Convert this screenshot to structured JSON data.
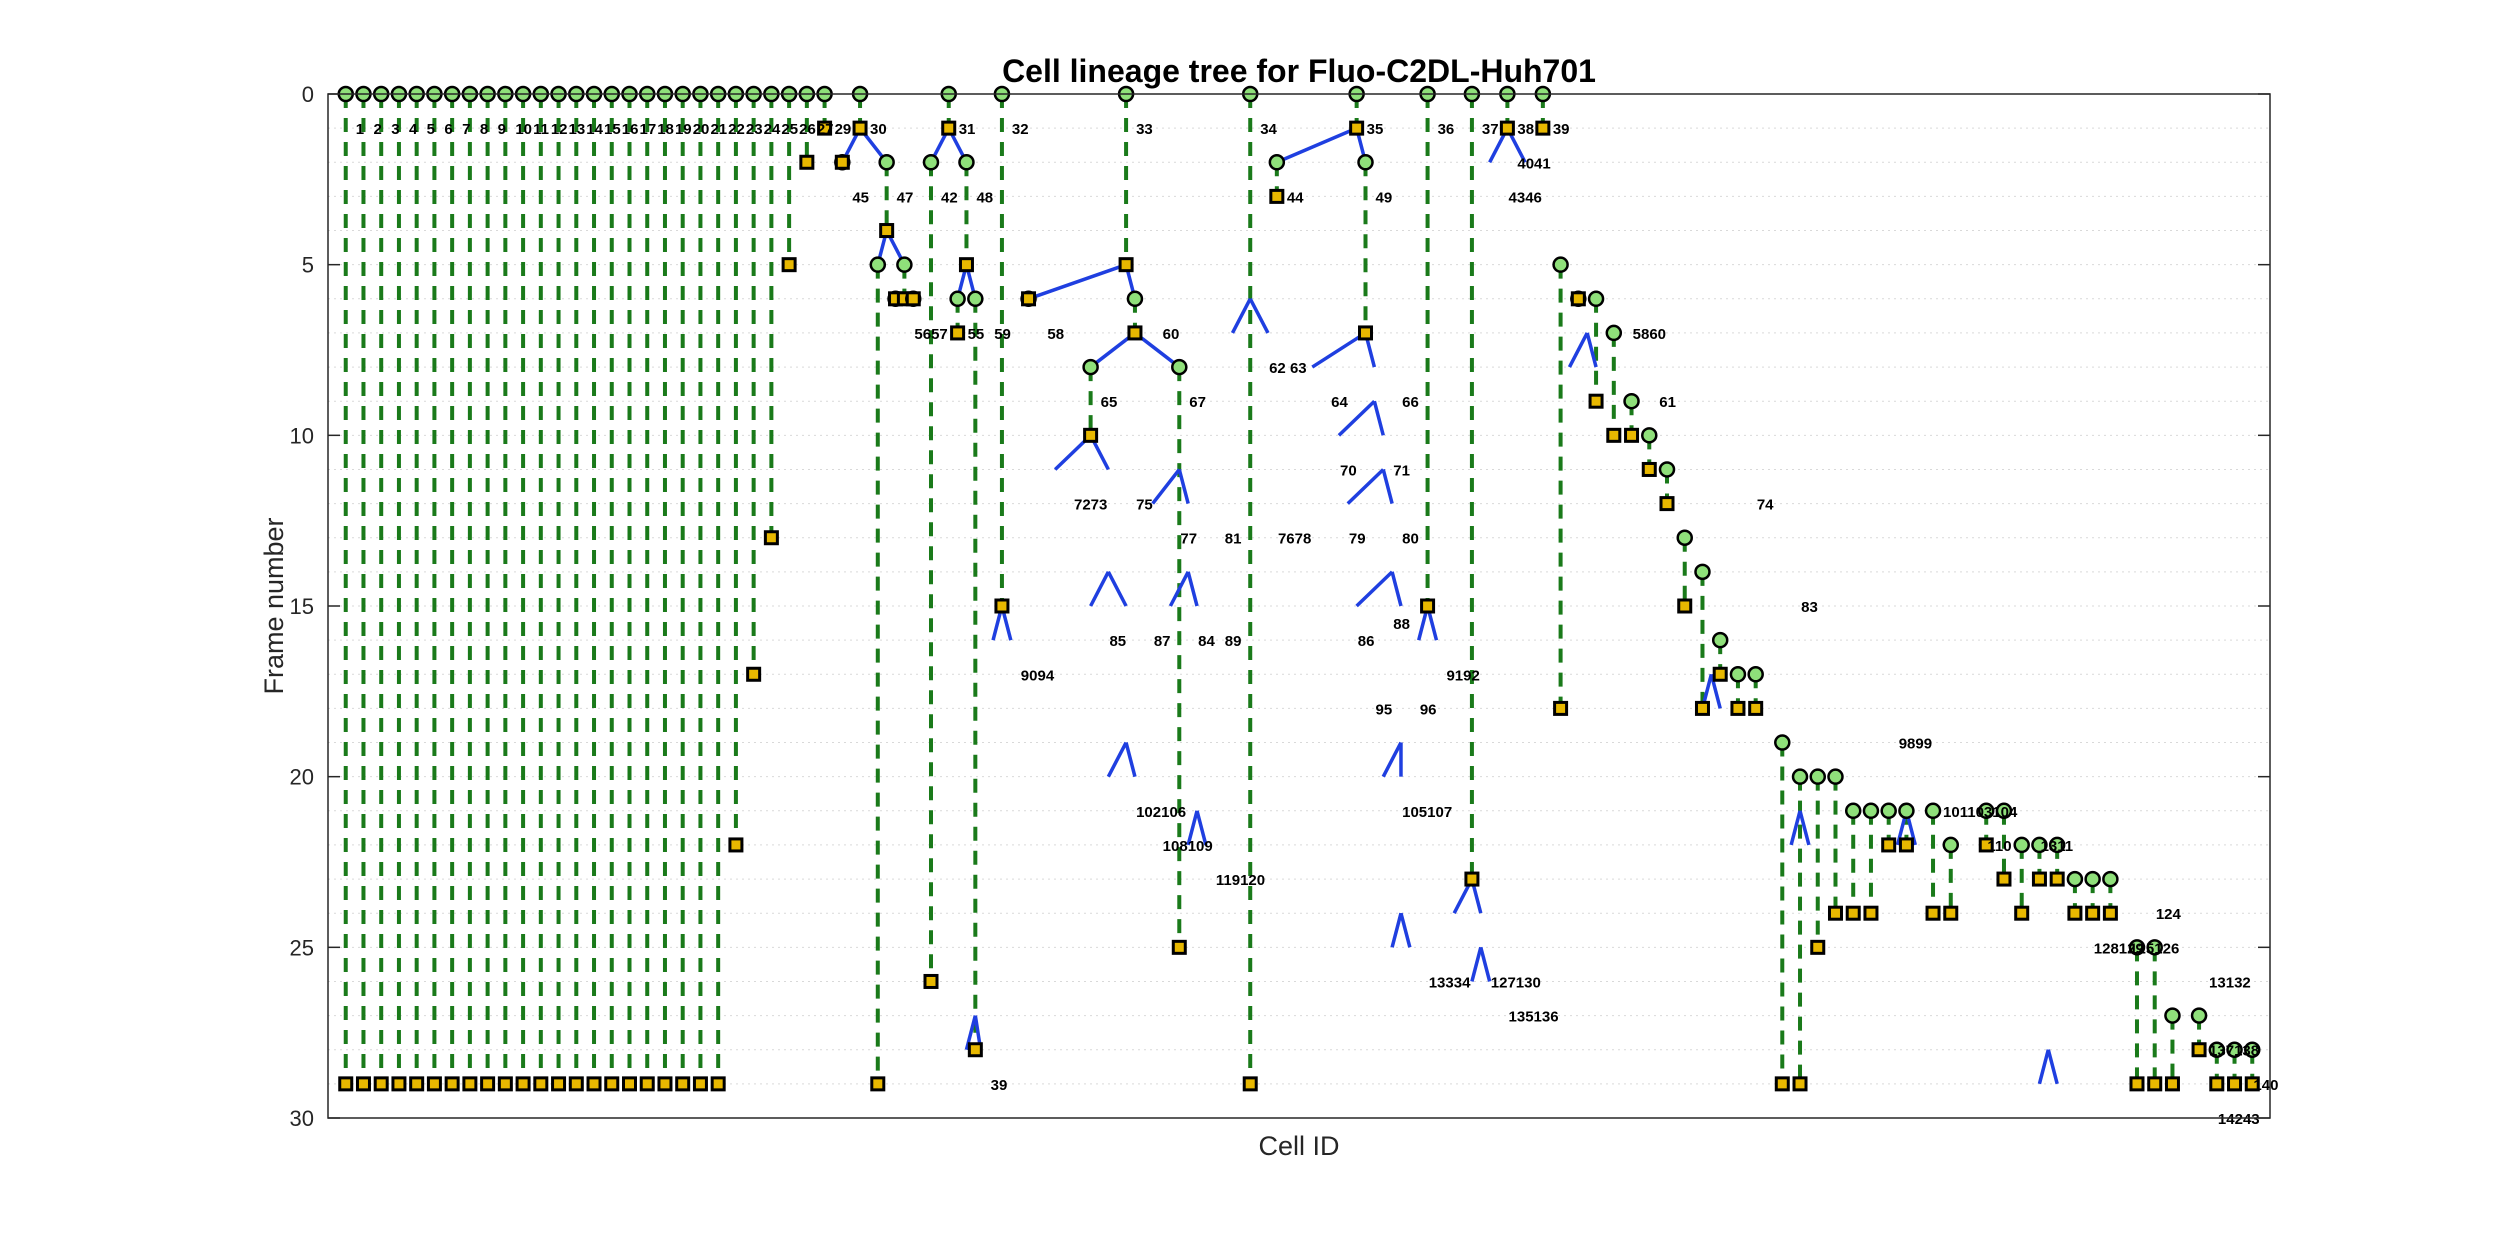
{
  "chart_data": {
    "type": "lineage-tree",
    "title": "Cell lineage tree for Fluo-C2DL-Huh701",
    "xlabel": "Cell ID",
    "ylabel": "Frame number",
    "ylim": [
      0,
      30
    ],
    "y_reversed": true,
    "yticks": [
      0,
      5,
      10,
      15,
      20,
      25,
      30
    ],
    "grid": "horizontal dotted",
    "colors": {
      "track_line": "#1a7a1a",
      "division_line": "#1f3fe0",
      "start_marker": "#8fe07a",
      "end_marker": "#e8b800",
      "marker_edge": "#000000"
    },
    "tracks": [
      {
        "id": "1",
        "x": 1,
        "start": 0,
        "end": 29
      },
      {
        "id": "2",
        "x": 2,
        "start": 0,
        "end": 29
      },
      {
        "id": "3",
        "x": 3,
        "start": 0,
        "end": 29
      },
      {
        "id": "4",
        "x": 4,
        "start": 0,
        "end": 29
      },
      {
        "id": "5",
        "x": 5,
        "start": 0,
        "end": 29
      },
      {
        "id": "6",
        "x": 6,
        "start": 0,
        "end": 29
      },
      {
        "id": "7",
        "x": 7,
        "start": 0,
        "end": 29
      },
      {
        "id": "8",
        "x": 8,
        "start": 0,
        "end": 29
      },
      {
        "id": "9",
        "x": 9,
        "start": 0,
        "end": 29
      },
      {
        "id": "10",
        "x": 10,
        "start": 0,
        "end": 29
      },
      {
        "id": "11",
        "x": 11,
        "start": 0,
        "end": 29
      },
      {
        "id": "12",
        "x": 12,
        "start": 0,
        "end": 29
      },
      {
        "id": "13",
        "x": 13,
        "start": 0,
        "end": 29
      },
      {
        "id": "14",
        "x": 14,
        "start": 0,
        "end": 29
      },
      {
        "id": "15",
        "x": 15,
        "start": 0,
        "end": 29
      },
      {
        "id": "16",
        "x": 16,
        "start": 0,
        "end": 29
      },
      {
        "id": "17",
        "x": 17,
        "start": 0,
        "end": 29
      },
      {
        "id": "18",
        "x": 18,
        "start": 0,
        "end": 29
      },
      {
        "id": "19",
        "x": 19,
        "start": 0,
        "end": 29
      },
      {
        "id": "20",
        "x": 20,
        "start": 0,
        "end": 29
      },
      {
        "id": "21",
        "x": 21,
        "start": 0,
        "end": 29
      },
      {
        "id": "22",
        "x": 22,
        "start": 0,
        "end": 29
      },
      {
        "id": "23",
        "x": 23,
        "start": 0,
        "end": 22
      },
      {
        "id": "24",
        "x": 24,
        "start": 0,
        "end": 17
      },
      {
        "id": "25",
        "x": 25,
        "start": 0,
        "end": 13
      },
      {
        "id": "26",
        "x": 26,
        "start": 0,
        "end": 5
      },
      {
        "id": "27",
        "x": 27,
        "start": 0,
        "end": 2
      },
      {
        "id": "29",
        "x": 28,
        "start": 0,
        "end": 1
      },
      {
        "id": "45",
        "x": 29,
        "start": 2,
        "end": 2
      },
      {
        "id": "30",
        "x": 30,
        "start": 0,
        "end": 1
      },
      {
        "id": "",
        "x": 31,
        "start": 5,
        "end": 29
      },
      {
        "id": "47",
        "x": 31.5,
        "start": 2,
        "end": 4
      },
      {
        "id": "",
        "x": 32,
        "start": 6,
        "end": 6
      },
      {
        "id": "",
        "x": 32.5,
        "start": 5,
        "end": 6
      },
      {
        "id": "42",
        "x": 33,
        "start": 6,
        "end": 6
      },
      {
        "id": "42",
        "x": 34,
        "start": 2,
        "end": 26
      },
      {
        "id": "31",
        "x": 35,
        "start": 0,
        "end": 1
      },
      {
        "id": "55",
        "x": 35.5,
        "start": 6,
        "end": 7
      },
      {
        "id": "48",
        "x": 36,
        "start": 2,
        "end": 5
      },
      {
        "id": "59",
        "x": 36.5,
        "start": 6,
        "end": 28
      },
      {
        "id": "32",
        "x": 38,
        "start": 0,
        "end": 15
      },
      {
        "id": "58",
        "x": 39.5,
        "start": 6,
        "end": 6
      },
      {
        "id": "33",
        "x": 45,
        "start": 0,
        "end": 5
      },
      {
        "id": "65",
        "x": 43,
        "start": 8,
        "end": 10
      },
      {
        "id": "60",
        "x": 45.5,
        "start": 6,
        "end": 7
      },
      {
        "id": "67",
        "x": 48,
        "start": 8,
        "end": 25
      },
      {
        "id": "34",
        "x": 52,
        "start": 0,
        "end": 29
      },
      {
        "id": "44",
        "x": 53.5,
        "start": 2,
        "end": 3
      },
      {
        "id": "35",
        "x": 58,
        "start": 0,
        "end": 1
      },
      {
        "id": "49",
        "x": 58.5,
        "start": 2,
        "end": 7
      },
      {
        "id": "36",
        "x": 62,
        "start": 0,
        "end": 15
      },
      {
        "id": "37",
        "x": 64.5,
        "start": 0,
        "end": 23
      },
      {
        "id": "38",
        "x": 66.5,
        "start": 0,
        "end": 1
      },
      {
        "id": "39",
        "x": 68.5,
        "start": 0,
        "end": 1
      }
    ],
    "divisions": [
      {
        "parent_x": 30,
        "frame": 1,
        "children_x": [
          29,
          31.5
        ]
      },
      {
        "parent_x": 35,
        "frame": 1,
        "children_x": [
          34,
          36
        ]
      },
      {
        "parent_x": 58,
        "frame": 1,
        "children_x": [
          53.5,
          58.5
        ]
      },
      {
        "parent_x": 66.5,
        "frame": 1,
        "children_x": [
          65.5,
          67.5
        ]
      },
      {
        "parent_x": 31.5,
        "frame": 4,
        "children_x": [
          31,
          32.5
        ]
      },
      {
        "parent_x": 36,
        "frame": 5,
        "children_x": [
          35.5,
          36.5
        ]
      },
      {
        "parent_x": 45,
        "frame": 5,
        "children_x": [
          39.5,
          45.5
        ]
      },
      {
        "parent_x": 45.5,
        "frame": 7,
        "children_x": [
          43,
          48
        ]
      },
      {
        "parent_x": 58.5,
        "frame": 7,
        "children_x": [
          55.5,
          59
        ]
      },
      {
        "parent_x": 52,
        "frame": 6,
        "children_x": [
          51,
          53
        ]
      },
      {
        "parent_x": 43,
        "frame": 10,
        "children_x": [
          41,
          44
        ]
      },
      {
        "parent_x": 59,
        "frame": 9,
        "children_x": [
          57,
          59.5
        ]
      },
      {
        "parent_x": 59.5,
        "frame": 11,
        "children_x": [
          57.5,
          60
        ]
      },
      {
        "parent_x": 60,
        "frame": 14,
        "children_x": [
          58,
          60.5
        ]
      },
      {
        "parent_x": 38,
        "frame": 15,
        "children_x": [
          37.5,
          38.5
        ]
      },
      {
        "parent_x": 44,
        "frame": 14,
        "children_x": [
          43,
          45
        ]
      },
      {
        "parent_x": 48,
        "frame": 11,
        "children_x": [
          46.5,
          48.5
        ]
      },
      {
        "parent_x": 48.5,
        "frame": 14,
        "children_x": [
          47.5,
          49
        ]
      },
      {
        "parent_x": 45,
        "frame": 19,
        "children_x": [
          44,
          45.5
        ]
      },
      {
        "parent_x": 60.5,
        "frame": 19,
        "children_x": [
          59.5,
          60.5
        ]
      },
      {
        "parent_x": 62,
        "frame": 15,
        "children_x": [
          61.5,
          62.5
        ]
      },
      {
        "parent_x": 64.5,
        "frame": 23,
        "children_x": [
          63.5,
          65
        ]
      },
      {
        "parent_x": 65,
        "frame": 25,
        "children_x": [
          64.5,
          65.5
        ]
      },
      {
        "parent_x": 60.5,
        "frame": 24,
        "children_x": [
          60,
          61
        ]
      },
      {
        "parent_x": 49,
        "frame": 21,
        "children_x": [
          48.5,
          49.5
        ]
      },
      {
        "parent_x": 36.5,
        "frame": 27,
        "children_x": [
          36,
          36.8
        ]
      },
      {
        "parent_x": 71,
        "frame": 7,
        "children_x": [
          70,
          71.5
        ]
      },
      {
        "parent_x": 78,
        "frame": 17,
        "children_x": [
          77.5,
          78.5
        ]
      },
      {
        "parent_x": 83,
        "frame": 21,
        "children_x": [
          82.5,
          83.5
        ]
      },
      {
        "parent_x": 89,
        "frame": 21,
        "children_x": [
          88.5,
          89.5
        ]
      },
      {
        "parent_x": 97,
        "frame": 28,
        "children_x": [
          96.5,
          97.5
        ]
      }
    ],
    "id_labels": [
      {
        "x": 1,
        "frame": 1,
        "text": "1"
      },
      {
        "x": 2,
        "frame": 1,
        "text": "2"
      },
      {
        "x": 3,
        "frame": 1,
        "text": "3"
      },
      {
        "x": 4,
        "frame": 1,
        "text": "4"
      },
      {
        "x": 5,
        "frame": 1,
        "text": "5"
      },
      {
        "x": 6,
        "frame": 1,
        "text": "6"
      },
      {
        "x": 7,
        "frame": 1,
        "text": "7"
      },
      {
        "x": 8,
        "frame": 1,
        "text": "8"
      },
      {
        "x": 9,
        "frame": 1,
        "text": "9"
      },
      {
        "x": 10,
        "frame": 1,
        "text": "10"
      },
      {
        "x": 11,
        "frame": 1,
        "text": "11"
      },
      {
        "x": 12,
        "frame": 1,
        "text": "12"
      },
      {
        "x": 13,
        "frame": 1,
        "text": "13"
      },
      {
        "x": 14,
        "frame": 1,
        "text": "14"
      },
      {
        "x": 15,
        "frame": 1,
        "text": "15"
      },
      {
        "x": 16,
        "frame": 1,
        "text": "16"
      },
      {
        "x": 17,
        "frame": 1,
        "text": "17"
      },
      {
        "x": 18,
        "frame": 1,
        "text": "18"
      },
      {
        "x": 19,
        "frame": 1,
        "text": "19"
      },
      {
        "x": 20,
        "frame": 1,
        "text": "20"
      },
      {
        "x": 21,
        "frame": 1,
        "text": "21"
      },
      {
        "x": 22,
        "frame": 1,
        "text": "22"
      },
      {
        "x": 23,
        "frame": 1,
        "text": "23"
      },
      {
        "x": 24,
        "frame": 1,
        "text": "24"
      },
      {
        "x": 25,
        "frame": 1,
        "text": "25"
      },
      {
        "x": 26,
        "frame": 1,
        "text": "26"
      },
      {
        "x": 27,
        "frame": 1,
        "text": "27"
      },
      {
        "x": 28,
        "frame": 1,
        "text": "29"
      },
      {
        "x": 30,
        "frame": 1,
        "text": "30"
      },
      {
        "x": 35,
        "frame": 1,
        "text": "31"
      },
      {
        "x": 38,
        "frame": 1,
        "text": "32"
      },
      {
        "x": 45,
        "frame": 1,
        "text": "33"
      },
      {
        "x": 52,
        "frame": 1,
        "text": "34"
      },
      {
        "x": 58,
        "frame": 1,
        "text": "35"
      },
      {
        "x": 62,
        "frame": 1,
        "text": "36"
      },
      {
        "x": 64.5,
        "frame": 1,
        "text": "37"
      },
      {
        "x": 66.5,
        "frame": 1,
        "text": "38"
      },
      {
        "x": 68.5,
        "frame": 1,
        "text": "39"
      },
      {
        "x": 29,
        "frame": 3,
        "text": "45"
      },
      {
        "x": 31.5,
        "frame": 3,
        "text": "47"
      },
      {
        "x": 34,
        "frame": 3,
        "text": "42"
      },
      {
        "x": 36,
        "frame": 3,
        "text": "48"
      },
      {
        "x": 53.5,
        "frame": 3,
        "text": "44"
      },
      {
        "x": 58.5,
        "frame": 3,
        "text": "49"
      },
      {
        "x": 66.5,
        "frame": 2,
        "text": "4041"
      },
      {
        "x": 66,
        "frame": 3,
        "text": "4346"
      },
      {
        "x": 32.5,
        "frame": 7,
        "text": "5657"
      },
      {
        "x": 35.5,
        "frame": 7,
        "text": "55"
      },
      {
        "x": 37,
        "frame": 7,
        "text": "59"
      },
      {
        "x": 40,
        "frame": 7,
        "text": "58"
      },
      {
        "x": 46.5,
        "frame": 7,
        "text": "60"
      },
      {
        "x": 52.5,
        "frame": 8,
        "text": "62 63"
      },
      {
        "x": 43,
        "frame": 9,
        "text": "65"
      },
      {
        "x": 48,
        "frame": 9,
        "text": "67"
      },
      {
        "x": 56,
        "frame": 9,
        "text": "64"
      },
      {
        "x": 60,
        "frame": 9,
        "text": "66"
      },
      {
        "x": 73,
        "frame": 7,
        "text": "5860"
      },
      {
        "x": 74.5,
        "frame": 9,
        "text": "61"
      },
      {
        "x": 56.5,
        "frame": 11,
        "text": "70"
      },
      {
        "x": 59.5,
        "frame": 11,
        "text": "71"
      },
      {
        "x": 41.5,
        "frame": 12,
        "text": "7273"
      },
      {
        "x": 45,
        "frame": 12,
        "text": "75"
      },
      {
        "x": 80,
        "frame": 12,
        "text": "74"
      },
      {
        "x": 47.5,
        "frame": 13,
        "text": "77"
      },
      {
        "x": 50,
        "frame": 13,
        "text": "81"
      },
      {
        "x": 53,
        "frame": 13,
        "text": "7678"
      },
      {
        "x": 57,
        "frame": 13,
        "text": "79"
      },
      {
        "x": 60,
        "frame": 13,
        "text": "80"
      },
      {
        "x": 43.5,
        "frame": 16,
        "text": "85"
      },
      {
        "x": 46,
        "frame": 16,
        "text": "87"
      },
      {
        "x": 48.5,
        "frame": 16,
        "text": "84"
      },
      {
        "x": 50,
        "frame": 16,
        "text": "89"
      },
      {
        "x": 57.5,
        "frame": 16,
        "text": "86"
      },
      {
        "x": 59.5,
        "frame": 15.5,
        "text": "88"
      },
      {
        "x": 82.5,
        "frame": 15,
        "text": "83"
      },
      {
        "x": 38.5,
        "frame": 17,
        "text": "9094"
      },
      {
        "x": 62.5,
        "frame": 17,
        "text": "9192"
      },
      {
        "x": 58.5,
        "frame": 18,
        "text": "95"
      },
      {
        "x": 61,
        "frame": 18,
        "text": "96"
      },
      {
        "x": 88,
        "frame": 19,
        "text": "9899"
      },
      {
        "x": 60,
        "frame": 21,
        "text": "105107"
      },
      {
        "x": 45,
        "frame": 21,
        "text": "102106"
      },
      {
        "x": 46.5,
        "frame": 22,
        "text": "108109"
      },
      {
        "x": 49.5,
        "frame": 23,
        "text": "119120"
      },
      {
        "x": 90.5,
        "frame": 21,
        "text": "101103104"
      },
      {
        "x": 93,
        "frame": 22,
        "text": "110"
      },
      {
        "x": 96,
        "frame": 22,
        "text": "1311"
      },
      {
        "x": 99,
        "frame": 25,
        "text": "128129"
      },
      {
        "x": 61.5,
        "frame": 26,
        "text": "13334"
      },
      {
        "x": 65,
        "frame": 26,
        "text": "127130"
      },
      {
        "x": 66,
        "frame": 27,
        "text": "135136"
      },
      {
        "x": 101,
        "frame": 25,
        "text": "125126"
      },
      {
        "x": 102.5,
        "frame": 24,
        "text": "124"
      },
      {
        "x": 105.5,
        "frame": 26,
        "text": "13132"
      },
      {
        "x": 105.5,
        "frame": 28,
        "text": "137138"
      },
      {
        "x": 108,
        "frame": 29,
        "text": "140"
      },
      {
        "x": 106,
        "frame": 30,
        "text": "14243"
      },
      {
        "x": 36.8,
        "frame": 29,
        "text": "39"
      }
    ],
    "right_tracks": [
      {
        "x": 69.5,
        "start": 5,
        "end": 18
      },
      {
        "x": 70.5,
        "start": 6,
        "end": 6
      },
      {
        "x": 71.5,
        "start": 6,
        "end": 9
      },
      {
        "x": 72.5,
        "start": 7,
        "end": 10
      },
      {
        "x": 73.5,
        "start": 9,
        "end": 10
      },
      {
        "x": 74.5,
        "start": 10,
        "end": 11
      },
      {
        "x": 75.5,
        "start": 11,
        "end": 12
      },
      {
        "x": 76.5,
        "start": 13,
        "end": 15
      },
      {
        "x": 77.5,
        "start": 14,
        "end": 18
      },
      {
        "x": 78.5,
        "start": 16,
        "end": 17
      },
      {
        "x": 79.5,
        "start": 17,
        "end": 18
      },
      {
        "x": 80.5,
        "start": 17,
        "end": 18
      },
      {
        "x": 82,
        "start": 19,
        "end": 29
      },
      {
        "x": 83,
        "start": 20,
        "end": 29
      },
      {
        "x": 84,
        "start": 20,
        "end": 25
      },
      {
        "x": 85,
        "start": 20,
        "end": 24
      },
      {
        "x": 86,
        "start": 21,
        "end": 24
      },
      {
        "x": 87,
        "start": 21,
        "end": 24
      },
      {
        "x": 88,
        "start": 21,
        "end": 22
      },
      {
        "x": 89,
        "start": 21,
        "end": 22
      },
      {
        "x": 90.5,
        "start": 21,
        "end": 24
      },
      {
        "x": 91.5,
        "start": 22,
        "end": 24
      },
      {
        "x": 93.5,
        "start": 21,
        "end": 22
      },
      {
        "x": 94.5,
        "start": 21,
        "end": 23
      },
      {
        "x": 95.5,
        "start": 22,
        "end": 24
      },
      {
        "x": 96.5,
        "start": 22,
        "end": 23
      },
      {
        "x": 97.5,
        "start": 22,
        "end": 23
      },
      {
        "x": 98.5,
        "start": 23,
        "end": 24
      },
      {
        "x": 99.5,
        "start": 23,
        "end": 24
      },
      {
        "x": 100.5,
        "start": 23,
        "end": 24
      },
      {
        "x": 102,
        "start": 25,
        "end": 29
      },
      {
        "x": 103,
        "start": 25,
        "end": 29
      },
      {
        "x": 104,
        "start": 27,
        "end": 29
      },
      {
        "x": 105.5,
        "start": 27,
        "end": 28
      },
      {
        "x": 106.5,
        "start": 28,
        "end": 29
      },
      {
        "x": 107.5,
        "start": 28,
        "end": 29
      },
      {
        "x": 108.5,
        "start": 28,
        "end": 29
      }
    ]
  }
}
